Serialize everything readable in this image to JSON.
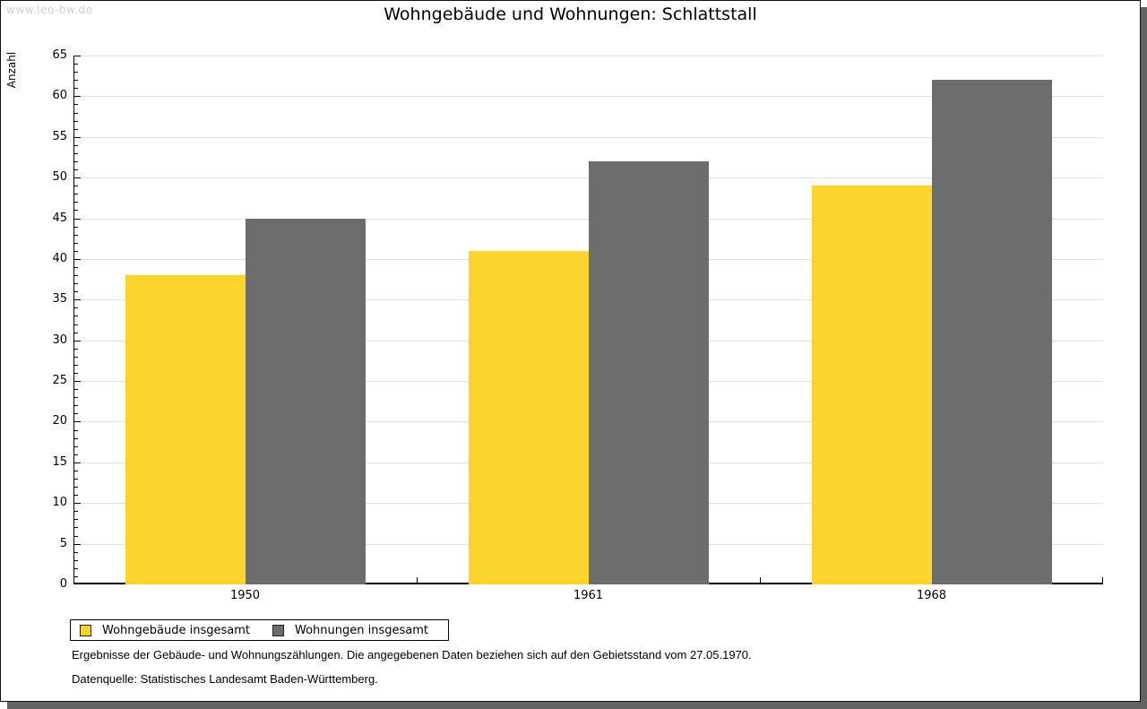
{
  "watermark": "www.leo-bw.de",
  "chart_data": {
    "type": "bar",
    "title": "Wohngebäude und Wohnungen: Schlattstall",
    "categories": [
      "1950",
      "1961",
      "1968"
    ],
    "series": [
      {
        "name": "Wohngebäude insgesamt",
        "values": [
          38,
          41,
          49
        ],
        "color": "#fcd32b"
      },
      {
        "name": "Wohnungen insgesamt",
        "values": [
          45,
          52,
          62
        ],
        "color": "#6d6d6d"
      }
    ],
    "xlabel": "",
    "ylabel": "Anzahl",
    "ylim": [
      0,
      65
    ],
    "y_major_step": 5,
    "y_minor_step": 1,
    "grid": true,
    "legend_position": "bottom-left"
  },
  "notes": {
    "line1": "Ergebnisse der Gebäude- und Wohnungszählungen. Die angegebenen Daten beziehen sich auf den Gebietsstand vom 27.05.1970.",
    "line2": "Datenquelle: Statistisches Landesamt Baden-Württemberg."
  },
  "colors": {
    "grid": "#e1e1e1",
    "axis": "#000000",
    "watermark_text": "#d2d2d2",
    "frame_shadow": "#636363",
    "legend_border": "#000000"
  }
}
